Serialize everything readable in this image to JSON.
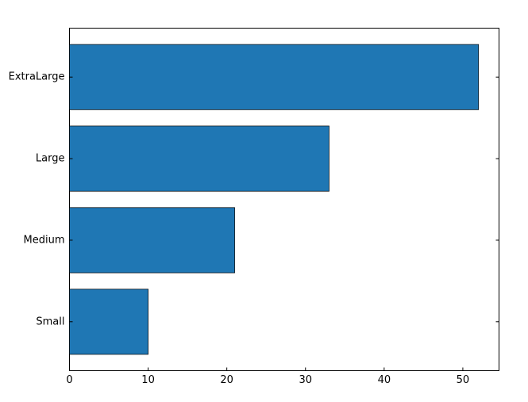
{
  "chart_data": {
    "type": "barh",
    "categories": [
      "Small",
      "Medium",
      "Large",
      "ExtraLarge"
    ],
    "values": [
      10,
      21,
      33,
      52
    ],
    "color": "#1f77b4",
    "xlim": [
      0,
      54.6
    ],
    "xticks": [
      0,
      10,
      20,
      30,
      40,
      50
    ]
  }
}
